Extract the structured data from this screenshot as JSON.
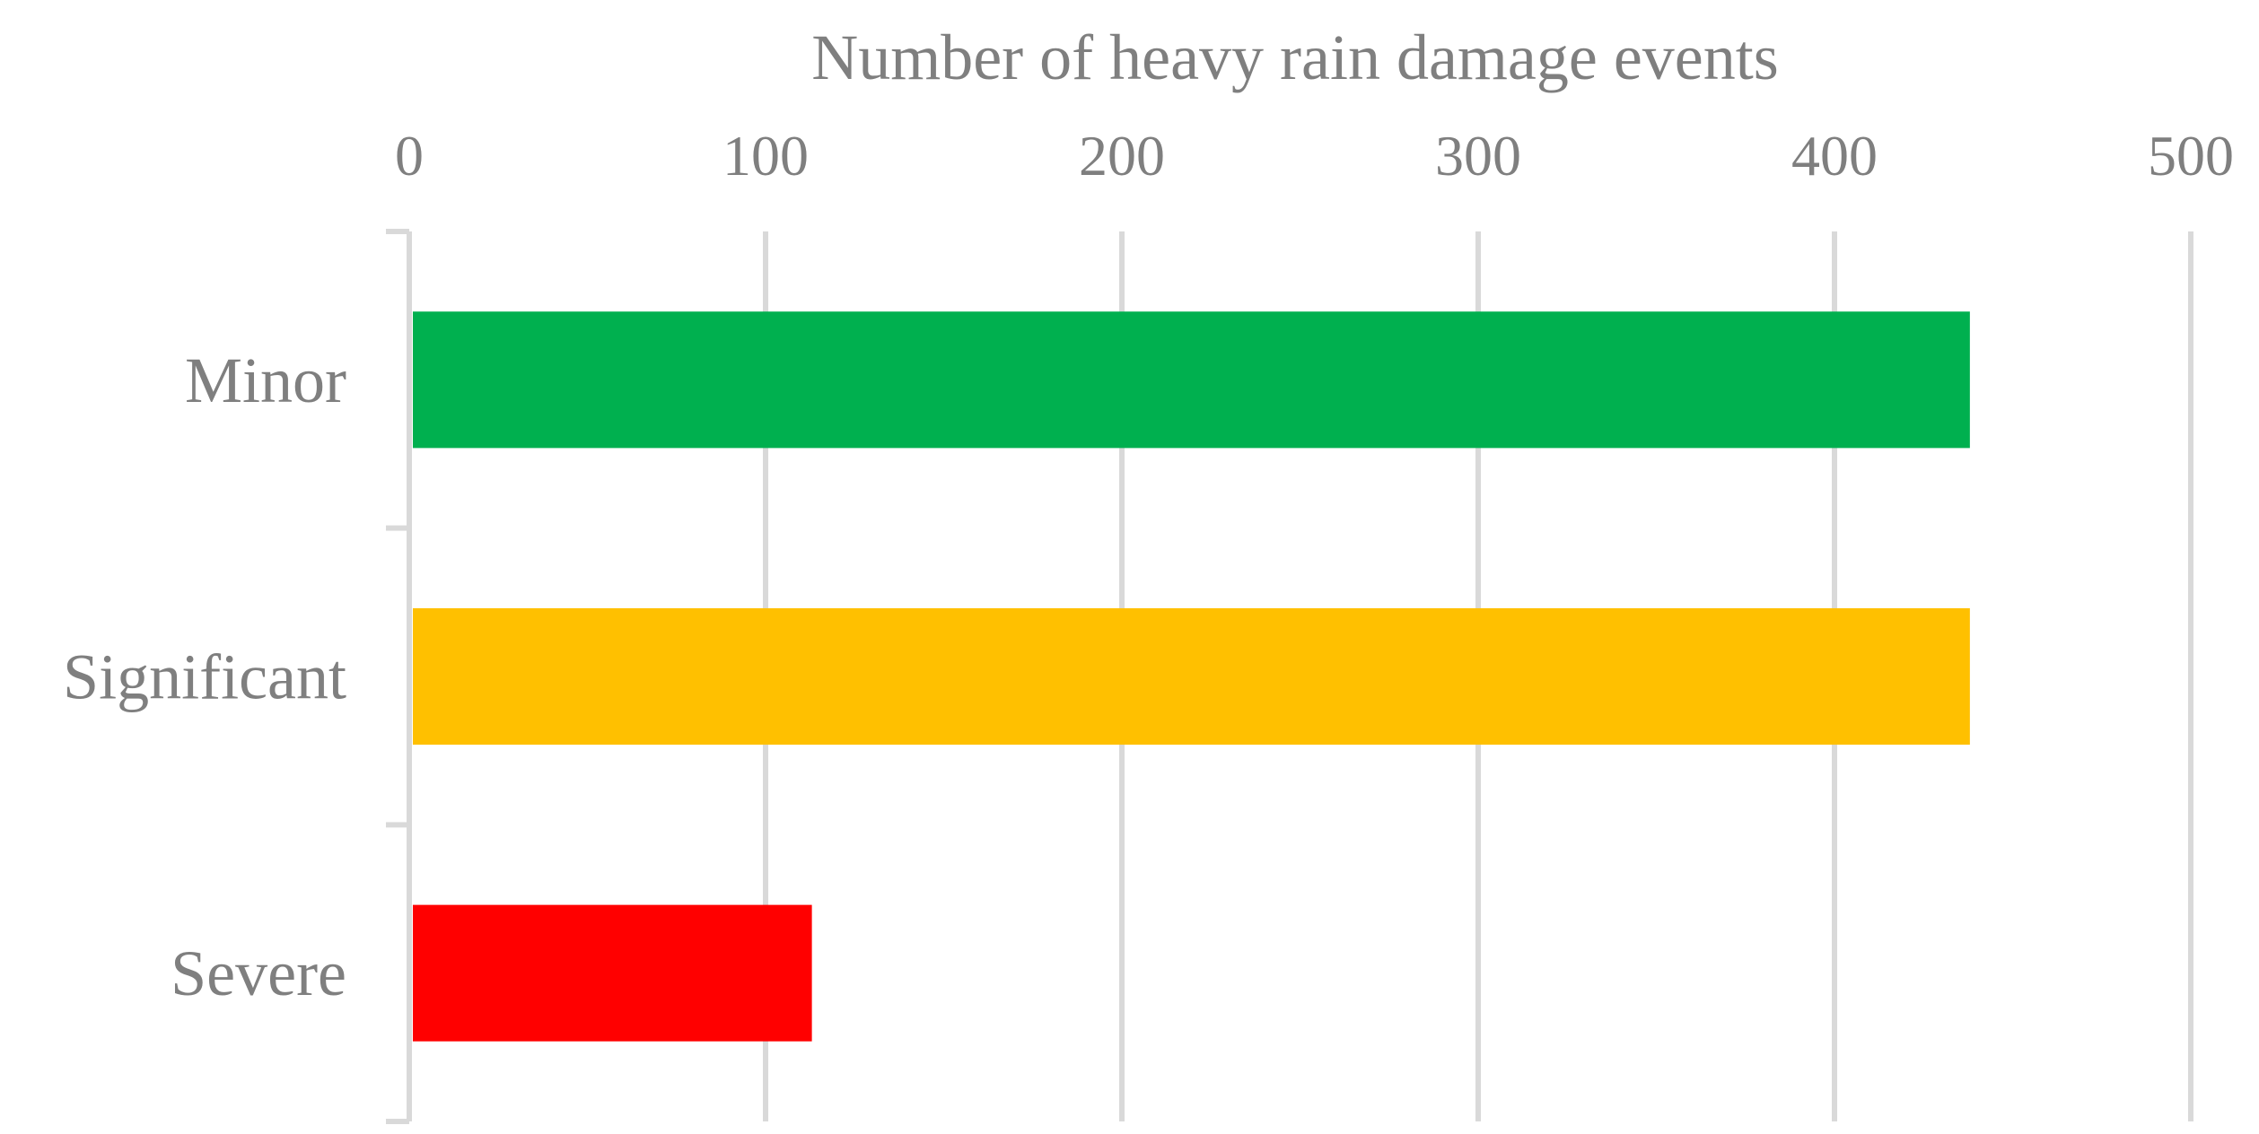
{
  "chart_data": {
    "type": "bar",
    "orientation": "horizontal",
    "x_axis_position": "top",
    "categories": [
      "Minor",
      "Significant",
      "Severe"
    ],
    "values": [
      438,
      438,
      113
    ],
    "colors": [
      "#00b04f",
      "#ffc000",
      "#ff0000"
    ],
    "xlabel": "Number of heavy rain damage events",
    "ylabel": "",
    "title": "",
    "xlim": [
      0,
      500
    ],
    "xticks": [
      0,
      100,
      200,
      300,
      400,
      500
    ],
    "xtick_labels": [
      "0",
      "100",
      "200",
      "300",
      "400",
      "500"
    ],
    "grid": "vertical",
    "grid_color": "#d9d9d9",
    "text_color": "#7f7f7f",
    "legend": "none"
  }
}
